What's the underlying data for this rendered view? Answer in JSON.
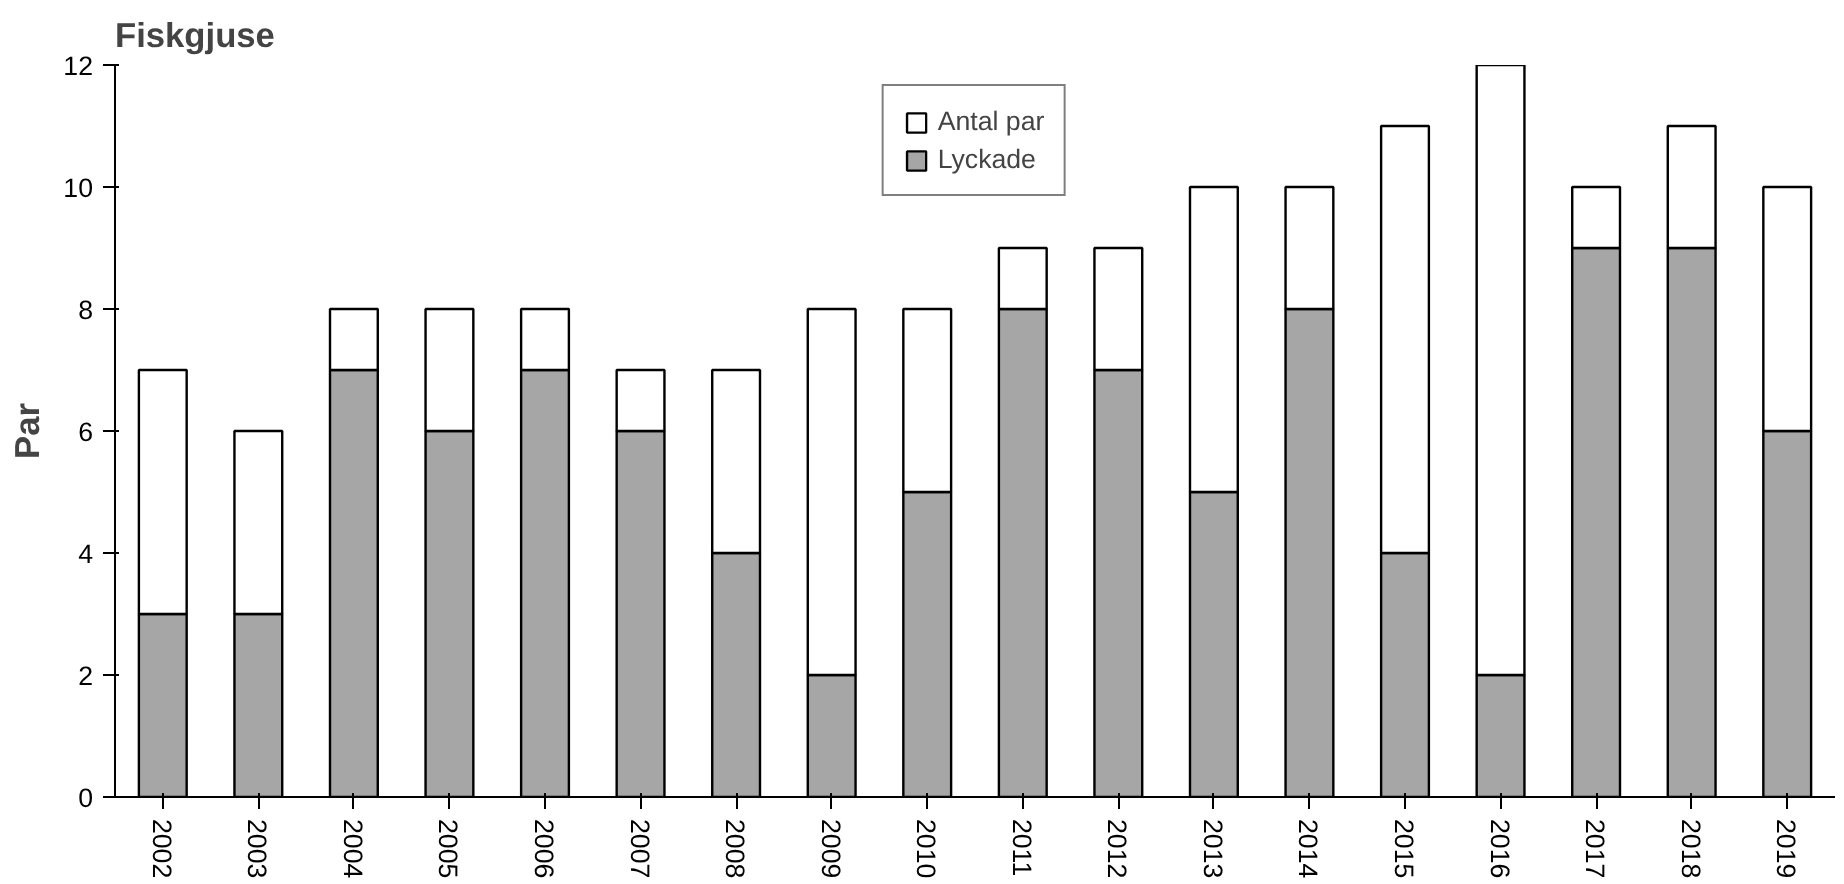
{
  "chart_data": {
    "type": "bar",
    "title": "Fiskgjuse",
    "ylabel": "Par",
    "categories": [
      "2002",
      "2003",
      "2004",
      "2005",
      "2006",
      "2007",
      "2008",
      "2009",
      "2010",
      "2011",
      "2012",
      "2013",
      "2014",
      "2015",
      "2016",
      "2017",
      "2018",
      "2019"
    ],
    "series": [
      {
        "name": "Lyckade",
        "color": "#a6a6a6",
        "values": [
          3,
          3,
          7,
          6,
          7,
          6,
          4,
          2,
          5,
          8,
          7,
          5,
          8,
          4,
          2,
          9,
          9,
          6
        ]
      },
      {
        "name": "Antal par",
        "color": "#ffffff",
        "values": [
          4,
          3,
          1,
          2,
          1,
          1,
          3,
          6,
          3,
          1,
          2,
          5,
          2,
          7,
          10,
          1,
          2,
          4
        ]
      }
    ],
    "stacked": true,
    "ylim": [
      0,
      12
    ],
    "yticks": [
      0,
      2,
      4,
      6,
      8,
      10,
      12
    ],
    "grid": false,
    "legend": "top"
  }
}
